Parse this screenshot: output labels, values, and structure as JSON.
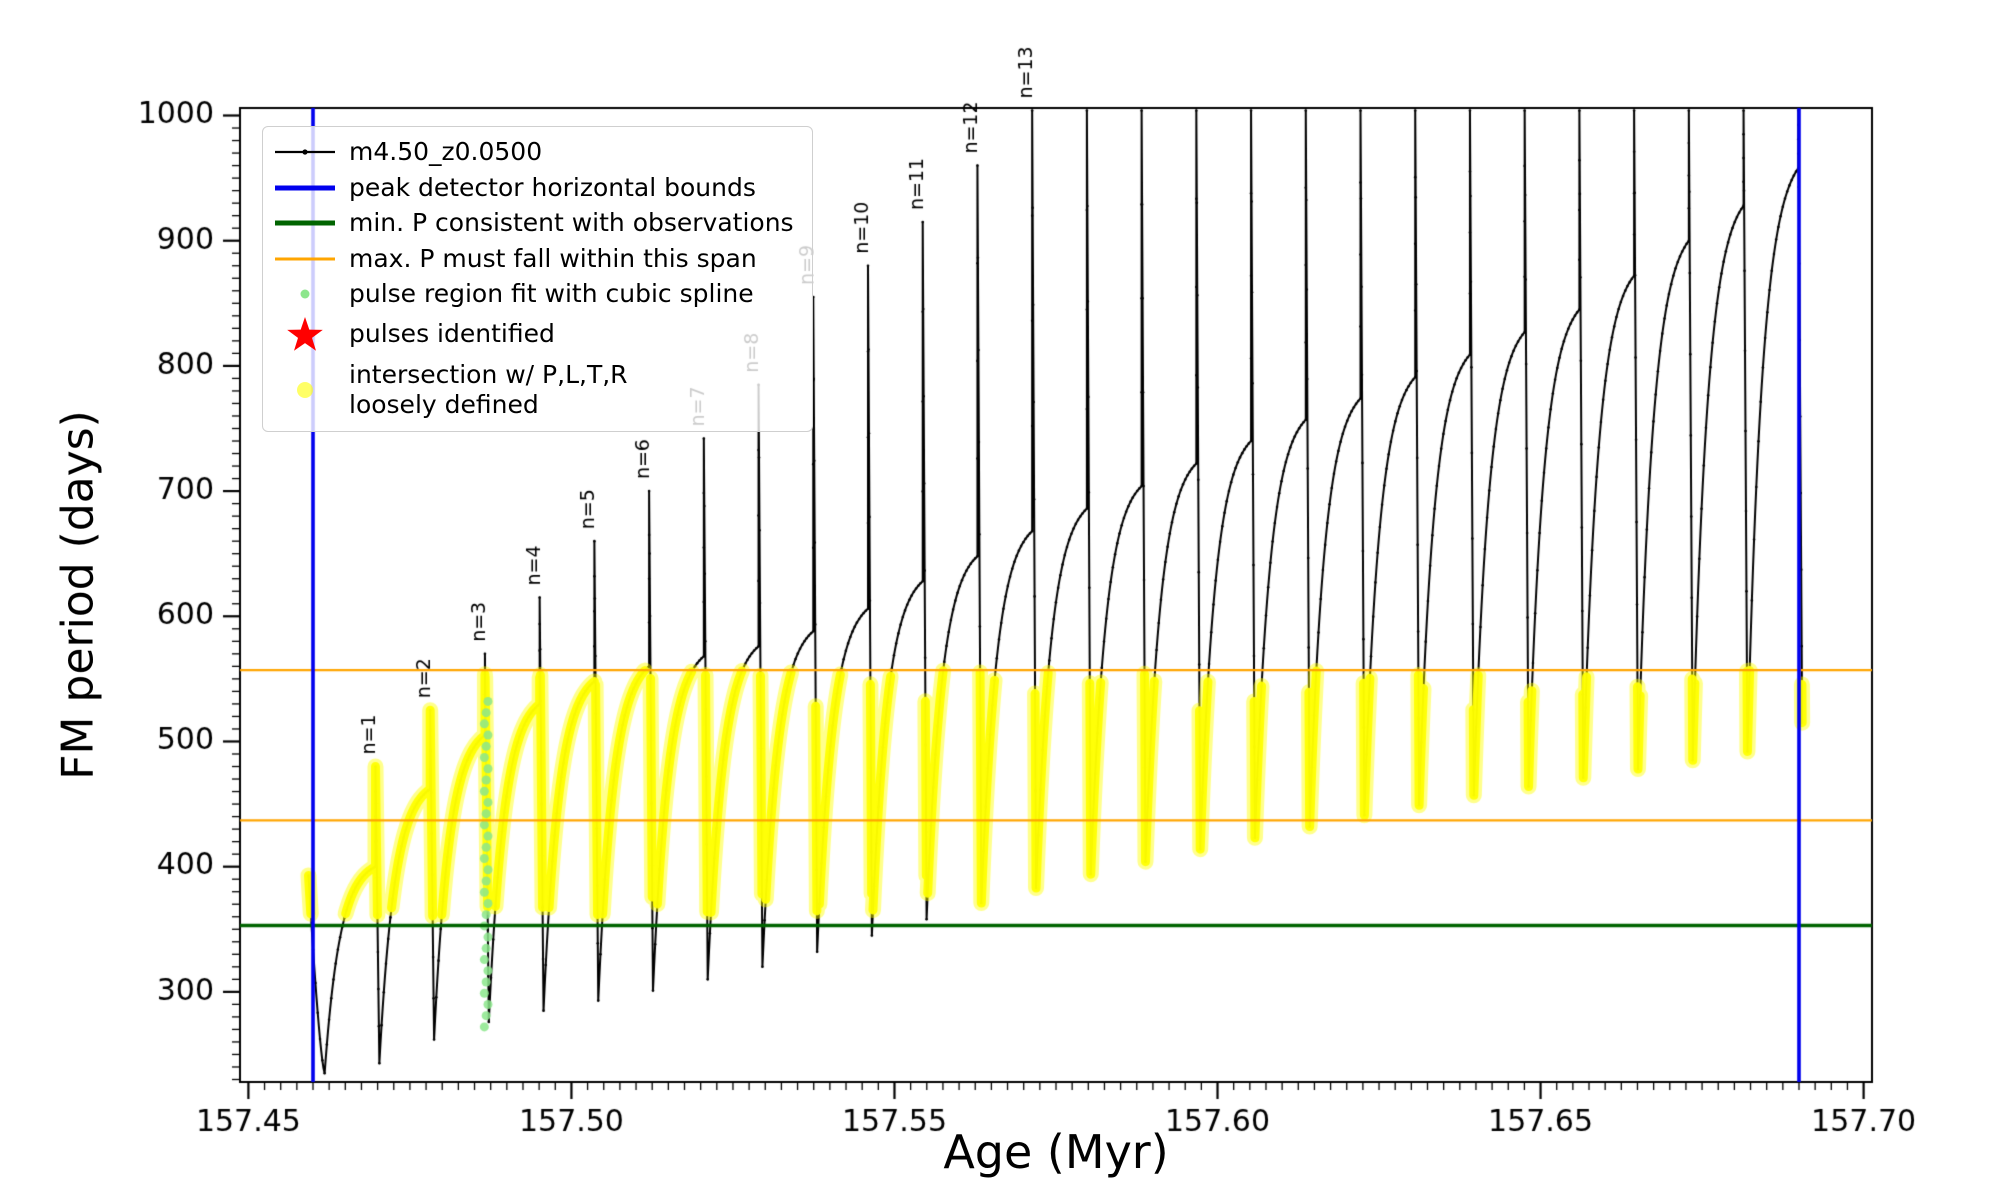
{
  "chart_data": {
    "type": "line",
    "title": "",
    "xlabel": "Age (Myr)",
    "ylabel": "FM period (days)",
    "xlim": [
      157.4487,
      157.7013
    ],
    "ylim": [
      228,
      1006
    ],
    "x_major_ticks": [
      157.45,
      157.5,
      157.55,
      157.6,
      157.65,
      157.7
    ],
    "x_tick_labels": [
      "157.45",
      "157.50",
      "157.55",
      "157.60",
      "157.65",
      "157.70"
    ],
    "x_minor_step": 0.0025,
    "y_major_ticks": [
      300,
      400,
      500,
      600,
      700,
      800,
      900,
      1000
    ],
    "y_tick_labels": [
      "300",
      "400",
      "500",
      "600",
      "700",
      "800",
      "900",
      "1000"
    ],
    "y_minor_step": 10,
    "series_name": "m4.50_z0.0500",
    "colors": {
      "curve": "#000000",
      "peak_detector_bounds": "#0000ee",
      "min_p_line": "#006400",
      "max_p_lines": "#ffa500",
      "pulse_fit_dots": "#8ce68c",
      "pulse_star": "#ff0000",
      "intersection_dots": "#ffff00"
    },
    "vlines_x": [
      157.46,
      157.69
    ],
    "hline_min_p": 353,
    "hlines_max_p": [
      557,
      437
    ],
    "yellow_band": [
      360,
      557
    ],
    "pulses": {
      "first_dip_x": 157.4618,
      "period_width": 0.00847,
      "spike_offset": 0.00787,
      "count": 27,
      "dip_minima": [
        235,
        243,
        262,
        276,
        285,
        293,
        301,
        310,
        320,
        332,
        345,
        358,
        371,
        383,
        394,
        404,
        414,
        423,
        432,
        441,
        449,
        457,
        464,
        471,
        478,
        485,
        492,
        515
      ],
      "envelope_peaks": [
        400,
        462,
        505,
        530,
        548,
        560,
        568,
        576,
        588,
        606,
        628,
        648,
        668,
        686,
        704,
        722,
        740,
        757,
        774,
        791,
        809,
        827,
        845,
        872,
        900,
        928,
        958
      ],
      "spike_tops": [
        480,
        525,
        570,
        615,
        660,
        700,
        742,
        785,
        855,
        880,
        915,
        960,
        1004,
        1004,
        1004,
        1004,
        1004,
        1004,
        1004,
        1004,
        1004,
        1004,
        1004,
        1004,
        1004,
        1004,
        1004
      ],
      "lead_in": {
        "x": 157.4593,
        "y": 393
      }
    },
    "spike_labels": [
      "n=1",
      "n=2",
      "n=3",
      "n=4",
      "n=5",
      "n=6",
      "n=7",
      "n=8",
      "n=9",
      "n=10",
      "n=11",
      "n=12",
      "n=13"
    ],
    "green_dot_cluster": {
      "x": 157.4868,
      "y_min": 272,
      "y_max": 532,
      "count": 30
    },
    "legend": {
      "items": [
        {
          "key": "series",
          "label": "m4.50_z0.0500"
        },
        {
          "key": "peak-bounds",
          "label": "peak detector horizontal bounds"
        },
        {
          "key": "min-p",
          "label": "min. P consistent with observations"
        },
        {
          "key": "max-p",
          "label": "max. P must fall within this span"
        },
        {
          "key": "pulse-fit",
          "label": "pulse region fit with cubic spline"
        },
        {
          "key": "pulses",
          "label": "pulses identified"
        },
        {
          "key": "intersection",
          "label": "intersection w/ P,L,T,R\nloosely defined"
        }
      ]
    }
  }
}
